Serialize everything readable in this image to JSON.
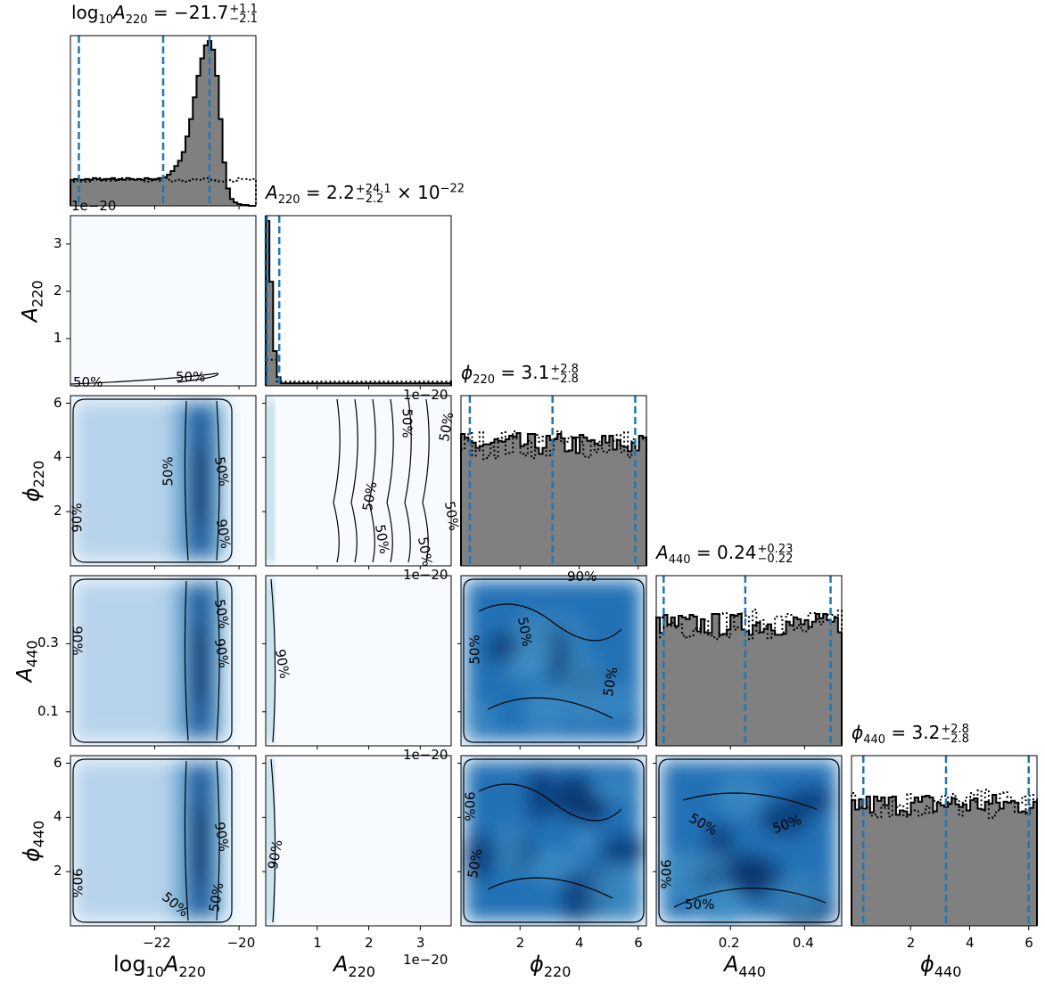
{
  "chart_data": {
    "type": "corner",
    "parameters": [
      {
        "key": "logA220",
        "symbol": "log10",
        "sub": "A",
        "subidx": "220",
        "xlim": [
          -24,
          -19.6
        ],
        "ticks": [
          -22,
          -20
        ],
        "tick_labels": [
          "−22",
          "−20"
        ],
        "title": {
          "lhs_log": "log",
          "lhs_log_sub": "10",
          "lhs_sym": "A",
          "lhs_sub": "220",
          "value": "−21.7",
          "plus": "+1.1",
          "minus": "−2.1",
          "suffix": ""
        },
        "quantiles": [
          -23.8,
          -21.8,
          -20.7
        ]
      },
      {
        "key": "A220",
        "symbol": "A",
        "subidx": "220",
        "xlim": [
          0,
          3.6
        ],
        "ticks": [
          1,
          2,
          3
        ],
        "tick_labels": [
          "1",
          "2",
          "3"
        ],
        "scale": "1e−20",
        "title": {
          "lhs_sym": "A",
          "lhs_sub": "220",
          "value": "2.2",
          "plus": "+24.1",
          "minus": "−2.2",
          "suffix": "× 10",
          "suffix_exp": "−22"
        },
        "quantiles": [
          0.0,
          0.022,
          0.263
        ]
      },
      {
        "key": "phi220",
        "symbol": "ϕ",
        "subidx": "220",
        "xlim": [
          0,
          6.28
        ],
        "ticks": [
          2,
          4,
          6
        ],
        "tick_labels": [
          "2",
          "4",
          "6"
        ],
        "title": {
          "lhs_sym": "ϕ",
          "lhs_sub": "220",
          "value": "3.1",
          "plus": "+2.8",
          "minus": "−2.8",
          "suffix": ""
        },
        "quantiles": [
          0.3,
          3.1,
          5.9
        ]
      },
      {
        "key": "A440",
        "symbol": "A",
        "subidx": "440",
        "xlim": [
          0,
          0.5
        ],
        "ticks": [
          0.2,
          0.4
        ],
        "tick_labels": [
          "0.2",
          "0.4"
        ],
        "title": {
          "lhs_sym": "A",
          "lhs_sub": "440",
          "value": "0.24",
          "plus": "+0.23",
          "minus": "−0.22",
          "suffix": ""
        },
        "quantiles": [
          0.02,
          0.24,
          0.47
        ]
      },
      {
        "key": "phi440",
        "symbol": "ϕ",
        "subidx": "440",
        "xlim": [
          0,
          6.28
        ],
        "ticks": [
          2,
          4,
          6
        ],
        "tick_labels": [
          "2",
          "4",
          "6"
        ],
        "title": {
          "lhs_sym": "ϕ",
          "lhs_sub": "440",
          "value": "3.2",
          "plus": "+2.8",
          "minus": "−2.8",
          "suffix": ""
        },
        "quantiles": [
          0.4,
          3.2,
          6.0
        ]
      }
    ],
    "row_axes": [
      {
        "row": 1,
        "ticks": [
          1,
          2,
          3
        ],
        "tick_labels": [
          "1",
          "2",
          "3"
        ],
        "ylim": [
          0,
          3.6
        ],
        "scale": "1e−20"
      },
      {
        "row": 2,
        "ticks": [
          2,
          4,
          6
        ],
        "tick_labels": [
          "2",
          "4",
          "6"
        ],
        "ylim": [
          0,
          6.28
        ]
      },
      {
        "row": 3,
        "ticks": [
          0.1,
          0.3
        ],
        "tick_labels": [
          "0.1",
          "0.3"
        ],
        "ylim": [
          0,
          0.5
        ]
      },
      {
        "row": 4,
        "ticks": [
          2,
          4,
          6
        ],
        "tick_labels": [
          "2",
          "4",
          "6"
        ],
        "ylim": [
          0,
          6.28
        ]
      }
    ],
    "hist_logA220": [
      30,
      31,
      30,
      30,
      31,
      30,
      32,
      31,
      30,
      31,
      31,
      32,
      30,
      31,
      30,
      32,
      31,
      30,
      31,
      30,
      32,
      31,
      30,
      31,
      32,
      33,
      36,
      40,
      46,
      52,
      62,
      80,
      100,
      125,
      150,
      170,
      185,
      190,
      180,
      150,
      100,
      50,
      20,
      8,
      4,
      2,
      1,
      1,
      0,
      0
    ],
    "contour_levels": [
      "50%",
      "90%"
    ],
    "colors": {
      "hist_fill": "#808080",
      "quantile_line": "#1f77b4",
      "density_low": "#f7fbff",
      "density_high": "#08306b"
    }
  }
}
